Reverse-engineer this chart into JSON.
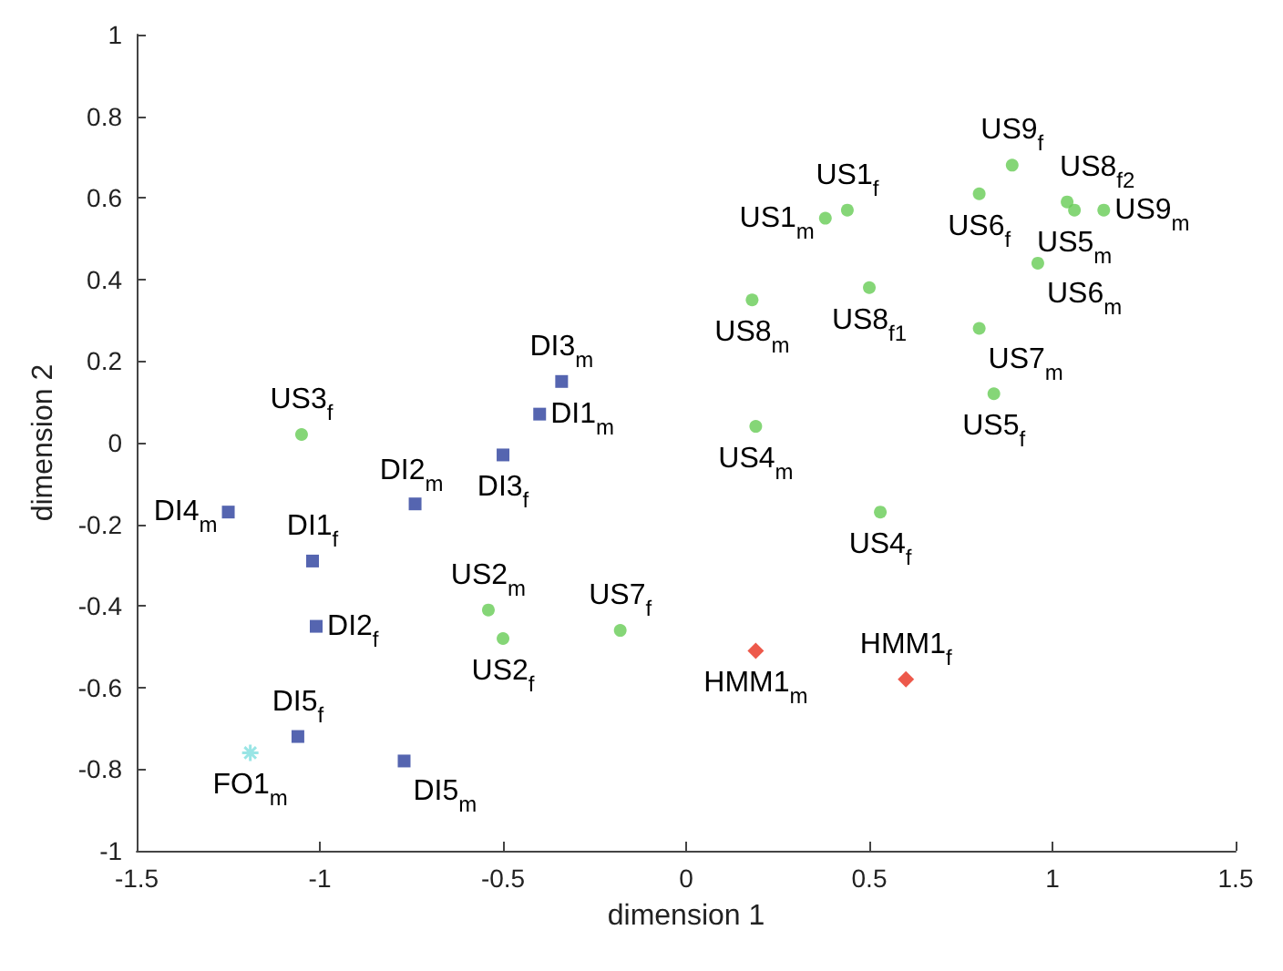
{
  "chart_data": {
    "type": "scatter",
    "xlabel": "dimension 1",
    "ylabel": "dimension 2",
    "xlim": [
      -1.5,
      1.5
    ],
    "xticks": [
      -1.5,
      -1,
      -0.5,
      0,
      0.5,
      1,
      1.5
    ],
    "ylim": [
      -1,
      1
    ],
    "yticks": [
      -1,
      -0.8,
      -0.6,
      -0.4,
      -0.2,
      0,
      0.2,
      0.4,
      0.6,
      0.8,
      1
    ],
    "grid": false,
    "series": [
      {
        "color": "#2a3f9c",
        "marker": "square",
        "x": [
          -0.34,
          -0.4,
          -0.5,
          -0.74,
          -1.25,
          -1.02,
          -1.01,
          -1.06,
          -0.77
        ],
        "values": [
          0.15,
          0.07,
          -0.03,
          -0.15,
          -0.17,
          -0.29,
          -0.45,
          -0.72,
          -0.78
        ]
      },
      {
        "color": "#66cc55",
        "marker": "circle",
        "x": [
          -1.05,
          -0.54,
          -0.5,
          -0.18,
          0.89,
          0.8,
          1.04,
          1.06,
          1.14,
          0.44,
          0.38,
          0.96,
          0.5,
          0.18,
          0.8,
          0.84,
          0.19,
          0.53
        ],
        "values": [
          0.02,
          -0.41,
          -0.48,
          -0.46,
          0.68,
          0.61,
          0.59,
          0.57,
          0.57,
          0.57,
          0.55,
          0.44,
          0.38,
          0.35,
          0.28,
          0.12,
          0.04,
          -0.17
        ]
      },
      {
        "color": "#e8301e",
        "marker": "diamond",
        "x": [
          0.19,
          0.6
        ],
        "values": [
          -0.51,
          -0.58
        ]
      },
      {
        "color": "#7fdede",
        "marker": "cross",
        "x": [
          -1.19
        ],
        "values": [
          -0.76
        ]
      }
    ],
    "annotations": [
      {
        "text": "US3$_{f}$",
        "x": -1.05,
        "y": 0.02
      },
      {
        "text": "DI3$_{m}$",
        "x": -0.34,
        "y": 0.15
      },
      {
        "text": "DI1$_{m}$",
        "x": -0.4,
        "y": 0.07
      },
      {
        "text": "DI3$_{f}$",
        "x": -0.5,
        "y": -0.03
      },
      {
        "text": "DI2$_{m}$",
        "x": -0.74,
        "y": -0.15
      },
      {
        "text": "DI4$_{m}$",
        "x": -1.25,
        "y": -0.17
      },
      {
        "text": "DI1$_{f}$",
        "x": -1.02,
        "y": -0.29
      },
      {
        "text": "DI2$_{f}$",
        "x": -1.01,
        "y": -0.45
      },
      {
        "text": "US2$_{m}$",
        "x": -0.54,
        "y": -0.41
      },
      {
        "text": "US2$_{f}$",
        "x": -0.5,
        "y": -0.48
      },
      {
        "text": "US7$_{f}$",
        "x": -0.18,
        "y": -0.46
      },
      {
        "text": "DI5$_{f}$",
        "x": -1.06,
        "y": -0.72
      },
      {
        "text": "FO1$_{m}$",
        "x": -1.19,
        "y": -0.76
      },
      {
        "text": "DI5$_{m}$",
        "x": -0.77,
        "y": -0.78
      },
      {
        "text": "US9$_{f}$",
        "x": 0.89,
        "y": 0.68
      },
      {
        "text": "US6$_{f}$",
        "x": 0.8,
        "y": 0.61
      },
      {
        "text": "US8$_{f2}$",
        "x": 1.04,
        "y": 0.59
      },
      {
        "text": "US5$_{m}$",
        "x": 1.06,
        "y": 0.57
      },
      {
        "text": "US9$_{m}$",
        "x": 1.14,
        "y": 0.57
      },
      {
        "text": "US1$_{f}$",
        "x": 0.44,
        "y": 0.57
      },
      {
        "text": "US1$_{m}$",
        "x": 0.38,
        "y": 0.55
      },
      {
        "text": "US6$_{m}$",
        "x": 0.96,
        "y": 0.44
      },
      {
        "text": "US8$_{f1}$",
        "x": 0.5,
        "y": 0.38
      },
      {
        "text": "US8$_{m}$",
        "x": 0.18,
        "y": 0.35
      },
      {
        "text": "US7$_{m}$",
        "x": 0.8,
        "y": 0.28
      },
      {
        "text": "US5$_{f}$",
        "x": 0.84,
        "y": 0.12
      },
      {
        "text": "US4$_{m}$",
        "x": 0.19,
        "y": 0.04
      },
      {
        "text": "US4$_{f}$",
        "x": 0.53,
        "y": -0.17
      },
      {
        "text": "HMM1$_{m}$",
        "x": 0.19,
        "y": -0.51
      },
      {
        "text": "HMM1$_{f}$",
        "x": 0.6,
        "y": -0.58
      }
    ]
  }
}
